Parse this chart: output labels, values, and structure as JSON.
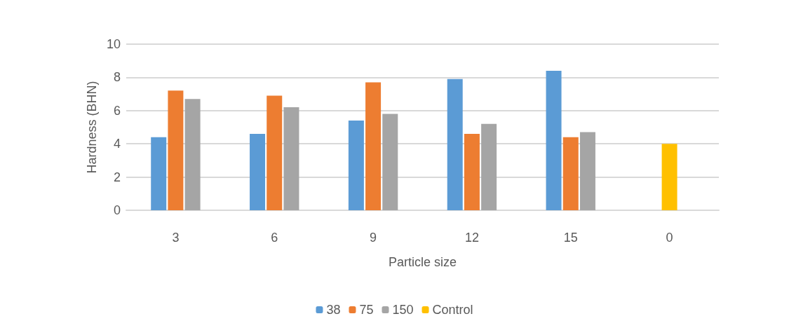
{
  "chart_data": {
    "type": "bar",
    "xlabel": "Particle size",
    "ylabel": "Hardness (BHN)",
    "categories": [
      "3",
      "6",
      "9",
      "12",
      "15",
      "0"
    ],
    "series": [
      {
        "name": "38",
        "color": "#5b9bd5",
        "values": [
          4.4,
          4.6,
          5.4,
          7.9,
          8.4,
          null
        ]
      },
      {
        "name": "75",
        "color": "#ed7d31",
        "values": [
          7.2,
          6.9,
          7.7,
          4.6,
          4.4,
          null
        ]
      },
      {
        "name": "150",
        "color": "#a5a5a5",
        "values": [
          6.7,
          6.2,
          5.8,
          5.2,
          4.7,
          null
        ]
      },
      {
        "name": "Control",
        "color": "#ffc000",
        "values": [
          null,
          null,
          null,
          null,
          null,
          4.0
        ]
      }
    ],
    "ylim": [
      0,
      10
    ],
    "yticks": [
      0,
      2,
      4,
      6,
      8,
      10
    ],
    "grid": "y",
    "legend": "bottom"
  }
}
